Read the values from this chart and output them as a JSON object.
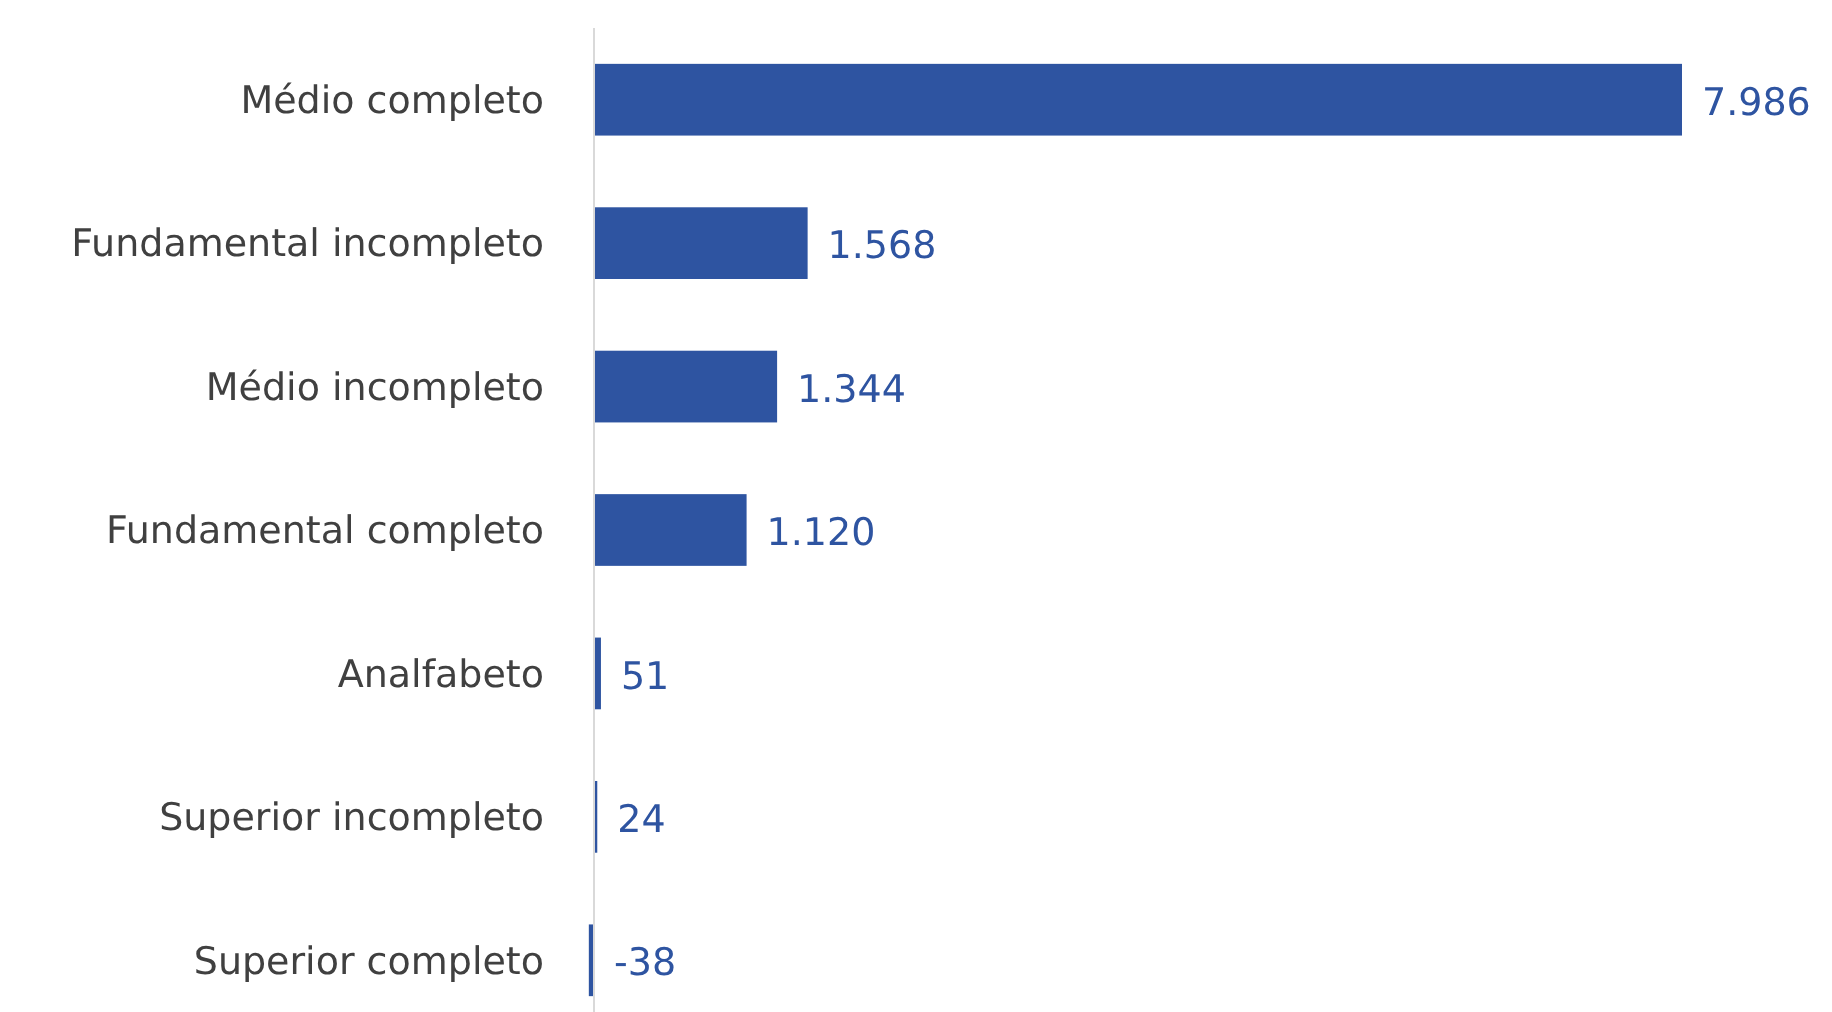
{
  "chart_data": {
    "type": "bar",
    "orientation": "horizontal",
    "categories": [
      "Médio completo",
      "Fundamental incompleto",
      "Médio incompleto",
      "Fundamental completo",
      "Analfabeto",
      "Superior incompleto",
      "Superior completo"
    ],
    "values": [
      7986,
      1568,
      1344,
      1120,
      51,
      24,
      -38
    ],
    "value_labels": [
      "7.986",
      "1.568",
      "1.344",
      "1.120",
      "51",
      "24",
      "-38"
    ],
    "color": "#2e54a1"
  }
}
